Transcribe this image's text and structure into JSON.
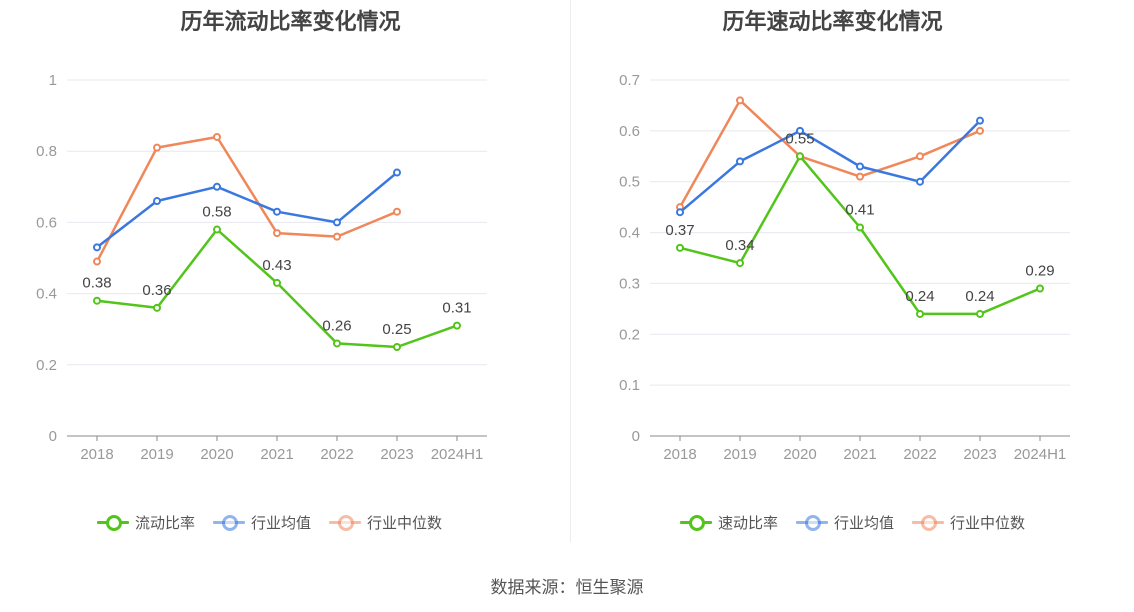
{
  "footer": {
    "source": "数据来源：恒生聚源"
  },
  "colors": {
    "company": "#52c41a",
    "industry_avg": "#3a78e0",
    "industry_median": "#f0875a",
    "grid": "#e6e8ef",
    "axis": "#888888",
    "tick_text": "#999999",
    "label_text": "#444444"
  },
  "chart_data": [
    {
      "type": "line",
      "title": "历年流动比率变化情况",
      "categories": [
        "2018",
        "2019",
        "2020",
        "2021",
        "2022",
        "2023",
        "2024H1"
      ],
      "ylim": [
        0,
        1
      ],
      "yticks": [
        "0",
        "0.2",
        "0.4",
        "0.6",
        "0.8",
        "1"
      ],
      "grid": true,
      "legend_position": "bottom",
      "series": [
        {
          "name": "流动比率",
          "color_key": "company",
          "labeled": true,
          "values": [
            0.38,
            0.36,
            0.58,
            0.43,
            0.26,
            0.25,
            0.31
          ]
        },
        {
          "name": "行业均值",
          "color_key": "industry_avg",
          "labeled": false,
          "values": [
            0.53,
            0.66,
            0.7,
            0.63,
            0.6,
            0.74,
            null
          ]
        },
        {
          "name": "行业中位数",
          "color_key": "industry_median",
          "labeled": false,
          "values": [
            0.49,
            0.81,
            0.84,
            0.57,
            0.56,
            0.63,
            null
          ]
        }
      ]
    },
    {
      "type": "line",
      "title": "历年速动比率变化情况",
      "categories": [
        "2018",
        "2019",
        "2020",
        "2021",
        "2022",
        "2023",
        "2024H1"
      ],
      "ylim": [
        0,
        0.7
      ],
      "yticks": [
        "0",
        "0.1",
        "0.2",
        "0.3",
        "0.4",
        "0.5",
        "0.6",
        "0.7"
      ],
      "grid": true,
      "legend_position": "bottom",
      "series": [
        {
          "name": "速动比率",
          "color_key": "company",
          "labeled": true,
          "values": [
            0.37,
            0.34,
            0.55,
            0.41,
            0.24,
            0.24,
            0.29
          ]
        },
        {
          "name": "行业均值",
          "color_key": "industry_avg",
          "labeled": false,
          "values": [
            0.44,
            0.54,
            0.6,
            0.53,
            0.5,
            0.62,
            null
          ]
        },
        {
          "name": "行业中位数",
          "color_key": "industry_median",
          "labeled": false,
          "values": [
            0.45,
            0.66,
            0.55,
            0.51,
            0.55,
            0.6,
            null
          ]
        }
      ]
    }
  ]
}
